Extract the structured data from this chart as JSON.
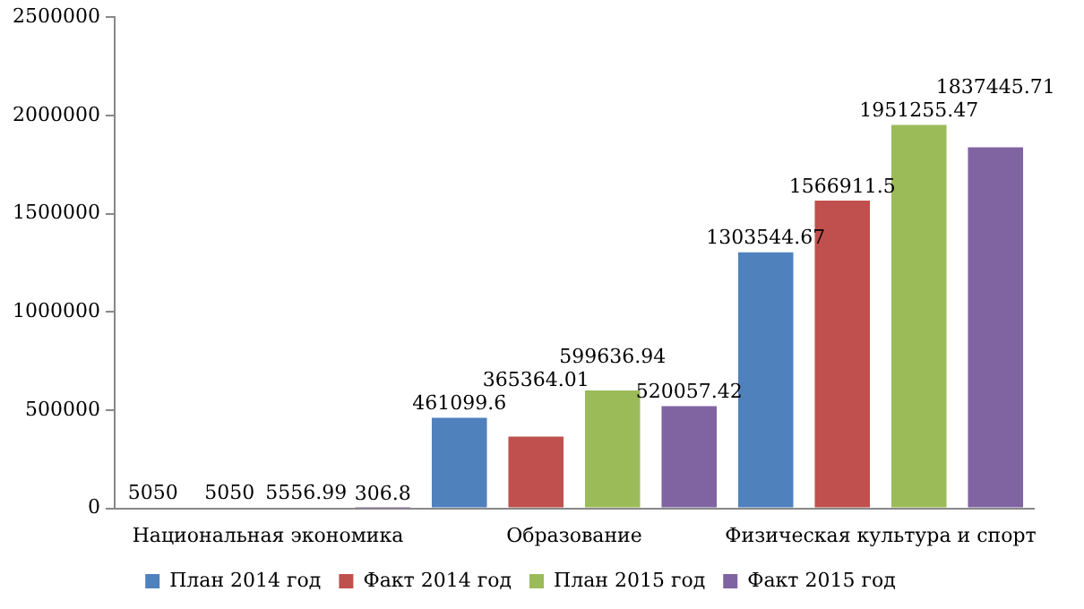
{
  "chart_data": {
    "type": "bar",
    "categories": [
      "Национальная экономика",
      "Образование",
      "Физическая культура и спорт"
    ],
    "series": [
      {
        "name": "План 2014 год",
        "color": "#4f81bd",
        "values": [
          5050,
          461099.6,
          1303544.67
        ]
      },
      {
        "name": "Факт 2014 год",
        "color": "#c0504d",
        "values": [
          5050,
          365364.01,
          1566911.5
        ]
      },
      {
        "name": "План 2015 год",
        "color": "#9bbb59",
        "values": [
          5556.99,
          599636.94,
          1951255.47
        ]
      },
      {
        "name": "Факт 2015 год",
        "color": "#8064a2",
        "values": [
          306.8,
          520057.42,
          1837445.71
        ]
      }
    ],
    "ylim": [
      0,
      2500000
    ],
    "yticks": [
      0,
      500000,
      1000000,
      1500000,
      2000000,
      2500000
    ],
    "grid": false,
    "legend": "bottom",
    "data_labels": true
  }
}
